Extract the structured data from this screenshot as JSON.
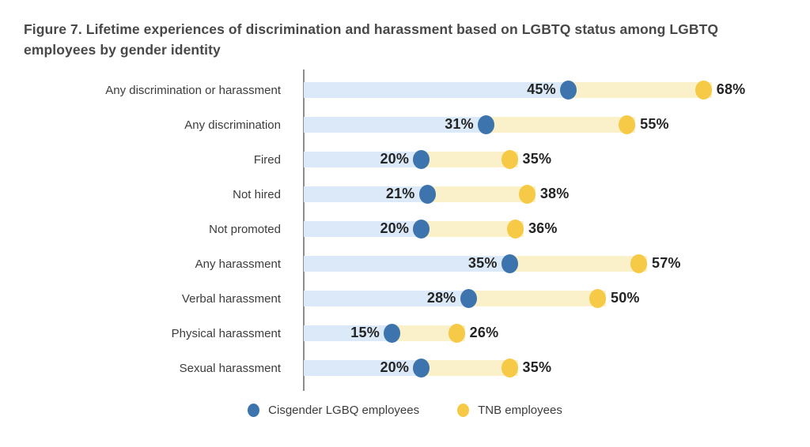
{
  "figure": {
    "title": "Figure 7. Lifetime experiences of discrimination and harassment based on LGBTQ status among LGBTQ employees by gender identity"
  },
  "colors": {
    "cisgender_dot": "#3d74ae",
    "tnb_dot": "#f6ca46",
    "cisgender_band": "#dce9f8",
    "tnb_band": "#faf1ca",
    "axis": "#8c8c8c",
    "title_text": "#48484a",
    "category_text": "#3c3c3c",
    "value_text": "#242424"
  },
  "legend": {
    "items": [
      {
        "label": "Cisgender LGBQ employees",
        "color": "#3d74ae"
      },
      {
        "label": "TNB employees",
        "color": "#f6ca46"
      }
    ]
  },
  "chart_data": {
    "type": "dumbbell-bar",
    "title": "Figure 7. Lifetime experiences of discrimination and harassment based on LGBTQ status among LGBTQ employees by gender identity",
    "categories": [
      "Any discrimination or harassment",
      "Any discrimination",
      "Fired",
      "Not hired",
      "Not promoted",
      "Any harassment",
      "Verbal harassment",
      "Physical harassment",
      "Sexual harassment"
    ],
    "series": [
      {
        "name": "Cisgender LGBQ employees",
        "dot_color": "#3d74ae",
        "band_color": "#dce9f8",
        "values": [
          45,
          31,
          20,
          21,
          20,
          35,
          28,
          15,
          20
        ]
      },
      {
        "name": "TNB employees",
        "dot_color": "#f6ca46",
        "band_color": "#faf1ca",
        "values": [
          68,
          55,
          35,
          38,
          36,
          57,
          50,
          26,
          35
        ]
      }
    ],
    "value_suffix": "%",
    "xlim": [
      0,
      86
    ],
    "grid": false,
    "legend_position": "bottom"
  }
}
